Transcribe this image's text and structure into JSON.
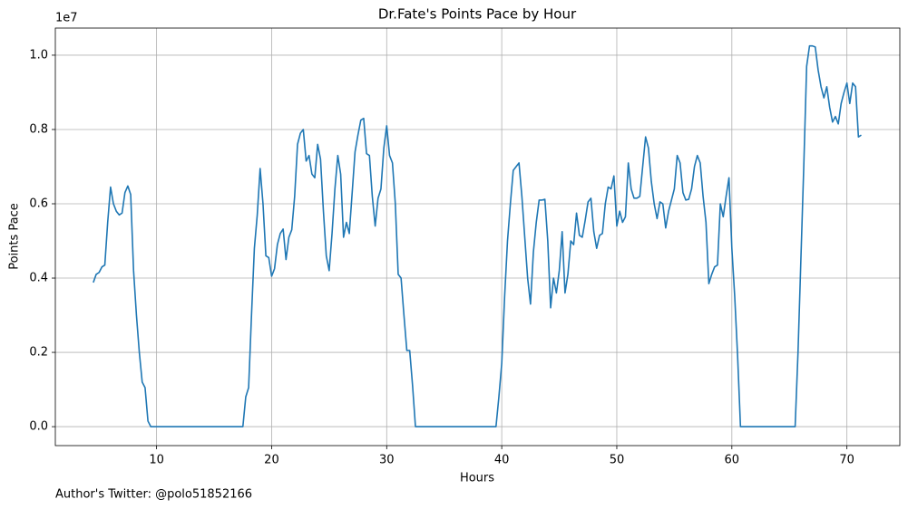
{
  "chart_data": {
    "type": "line",
    "title": "Dr.Fate's Points Pace by Hour",
    "x_label": "Hours",
    "y_label": "Points Pace",
    "y_offset_label": "1e7",
    "footnote": "Author's Twitter: @polo51852166",
    "color": "#1f77b4",
    "grid": true,
    "xlim": [
      1.2,
      74.6
    ],
    "ylim": [
      -0.051,
      1.073
    ],
    "xticks": [
      10,
      20,
      30,
      40,
      50,
      60,
      70
    ],
    "yticks": [
      {
        "value": 0,
        "label": "0.0"
      },
      {
        "value": 0.2,
        "label": "0.2"
      },
      {
        "value": 0.4,
        "label": "0.4"
      },
      {
        "value": 0.6,
        "label": "0.6"
      },
      {
        "value": 0.8,
        "label": "0.8"
      },
      {
        "value": 1.0,
        "label": "1.0"
      }
    ],
    "x": [
      4.5,
      4.75,
      5,
      5.25,
      5.5,
      5.75,
      6,
      6.25,
      6.5,
      6.75,
      7,
      7.25,
      7.5,
      7.75,
      8,
      8.25,
      8.5,
      8.75,
      9,
      9.25,
      9.5,
      17.5,
      17.75,
      18,
      18.25,
      18.5,
      18.75,
      19,
      19.25,
      19.5,
      19.75,
      20,
      20.25,
      20.5,
      20.75,
      21,
      21.25,
      21.5,
      21.75,
      22,
      22.25,
      22.5,
      22.75,
      23,
      23.25,
      23.5,
      23.75,
      24,
      24.25,
      24.5,
      24.75,
      25,
      25.25,
      25.5,
      25.75,
      26,
      26.25,
      26.5,
      26.75,
      27,
      27.25,
      27.5,
      27.75,
      28,
      28.25,
      28.5,
      28.75,
      29,
      29.25,
      29.5,
      29.75,
      30,
      30.25,
      30.5,
      30.75,
      31,
      31.25,
      31.5,
      31.75,
      32,
      32.25,
      32.5,
      39.5,
      39.75,
      40,
      40.25,
      40.5,
      40.75,
      41,
      41.25,
      41.5,
      41.75,
      42,
      42.25,
      42.5,
      42.75,
      43,
      43.25,
      43.5,
      43.75,
      44,
      44.25,
      44.5,
      44.75,
      45,
      45.25,
      45.5,
      45.75,
      46,
      46.25,
      46.5,
      46.75,
      47,
      47.25,
      47.5,
      47.75,
      48,
      48.25,
      48.5,
      48.75,
      49,
      49.25,
      49.5,
      49.75,
      50,
      50.25,
      50.5,
      50.75,
      51,
      51.25,
      51.5,
      51.75,
      52,
      52.25,
      52.5,
      52.75,
      53,
      53.25,
      53.5,
      53.75,
      54,
      54.25,
      54.5,
      54.75,
      55,
      55.25,
      55.5,
      55.75,
      56,
      56.25,
      56.5,
      56.75,
      57,
      57.25,
      57.5,
      57.75,
      58,
      58.25,
      58.5,
      58.75,
      59,
      59.25,
      59.5,
      59.75,
      60,
      60.25,
      60.5,
      60.75,
      65.5,
      65.75,
      66,
      66.25,
      66.5,
      66.75,
      67,
      67.25,
      67.5,
      67.75,
      68,
      68.25,
      68.5,
      68.75,
      69,
      69.25,
      69.5,
      69.75,
      70,
      70.25,
      70.5,
      70.75,
      71,
      71.25
    ],
    "values": [
      0.388,
      0.41,
      0.415,
      0.43,
      0.435,
      0.55,
      0.645,
      0.6,
      0.58,
      0.57,
      0.575,
      0.63,
      0.648,
      0.625,
      0.42,
      0.3,
      0.2,
      0.12,
      0.105,
      0.015,
      0,
      0,
      0.08,
      0.105,
      0.3,
      0.48,
      0.57,
      0.695,
      0.6,
      0.46,
      0.455,
      0.405,
      0.425,
      0.49,
      0.52,
      0.532,
      0.45,
      0.51,
      0.53,
      0.62,
      0.76,
      0.79,
      0.8,
      0.715,
      0.73,
      0.68,
      0.67,
      0.76,
      0.72,
      0.58,
      0.46,
      0.42,
      0.52,
      0.64,
      0.73,
      0.68,
      0.51,
      0.55,
      0.52,
      0.63,
      0.74,
      0.785,
      0.825,
      0.83,
      0.735,
      0.73,
      0.62,
      0.54,
      0.615,
      0.64,
      0.75,
      0.81,
      0.73,
      0.71,
      0.6,
      0.41,
      0.4,
      0.3,
      0.205,
      0.205,
      0.11,
      0,
      0,
      0.08,
      0.17,
      0.35,
      0.5,
      0.6,
      0.69,
      0.7,
      0.71,
      0.62,
      0.51,
      0.4,
      0.33,
      0.47,
      0.55,
      0.61,
      0.61,
      0.612,
      0.5,
      0.32,
      0.4,
      0.36,
      0.42,
      0.525,
      0.36,
      0.41,
      0.5,
      0.49,
      0.575,
      0.515,
      0.51,
      0.555,
      0.605,
      0.615,
      0.525,
      0.48,
      0.515,
      0.52,
      0.6,
      0.645,
      0.64,
      0.675,
      0.54,
      0.58,
      0.55,
      0.565,
      0.71,
      0.64,
      0.615,
      0.615,
      0.62,
      0.7,
      0.78,
      0.75,
      0.66,
      0.6,
      0.56,
      0.605,
      0.6,
      0.535,
      0.58,
      0.61,
      0.64,
      0.73,
      0.71,
      0.63,
      0.61,
      0.612,
      0.64,
      0.7,
      0.73,
      0.71,
      0.62,
      0.55,
      0.385,
      0.41,
      0.43,
      0.435,
      0.6,
      0.565,
      0.62,
      0.67,
      0.48,
      0.35,
      0.19,
      0,
      0,
      0.2,
      0.45,
      0.7,
      0.97,
      1.025,
      1.025,
      1.022,
      0.96,
      0.915,
      0.885,
      0.915,
      0.86,
      0.82,
      0.835,
      0.815,
      0.87,
      0.9,
      0.925,
      0.87,
      0.925,
      0.915,
      0.78,
      0.785
    ]
  }
}
